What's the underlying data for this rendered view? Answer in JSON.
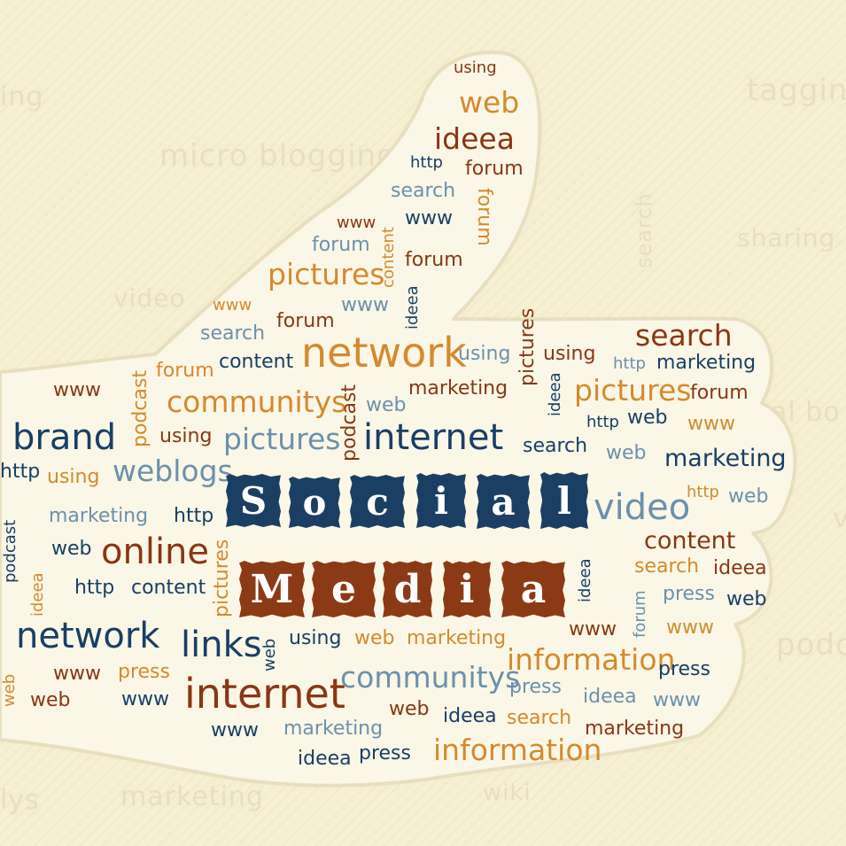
{
  "title_tiles": {
    "social": [
      "S",
      "o",
      "c",
      "i",
      "a",
      "l"
    ],
    "media": [
      "M",
      "e",
      "d",
      "i",
      "a"
    ]
  },
  "background_words": [
    "tagging",
    "micro blogging",
    "sharing",
    "video",
    "search",
    "podcast",
    "marketing",
    "wiki",
    "ing",
    "lys",
    "al bo",
    "podc",
    "v"
  ],
  "words": {
    "t01": "using",
    "t02": "web",
    "t03": "ideea",
    "t04": "http",
    "t05": "forum",
    "t06": "search",
    "t07": "forum",
    "t08": "www",
    "t09": "www",
    "t10": "forum",
    "t11": "content",
    "t12": "forum",
    "t13": "pictures",
    "t14": "www",
    "t15": "www",
    "t16": "ideea",
    "t17": "forum",
    "t18": "search",
    "t19": "network",
    "t20": "using",
    "t21": "pictures",
    "t22": "using",
    "t23": "search",
    "t24": "http",
    "t25": "marketing",
    "t26": "forum",
    "t27": "content",
    "t28": "www",
    "t29": "podcast",
    "t30": "communitys",
    "t31": "podcast",
    "t32": "web",
    "t33": "marketing",
    "t34": "ideea",
    "t35": "pictures",
    "t36": "forum",
    "t37": "brand",
    "t38": "using",
    "t39": "pictures",
    "t40": "internet",
    "t41": "http",
    "t42": "web",
    "t43": "www",
    "t44": "http",
    "t45": "using",
    "t46": "weblogs",
    "t47": "search",
    "t48": "web",
    "t49": "marketing",
    "t50": "podcast",
    "t51": "marketing",
    "t52": "http",
    "t53": "video",
    "t54": "http",
    "t55": "web",
    "t56": "web",
    "t57": "online",
    "t58": "pictures",
    "t59": "content",
    "t60": "ideea",
    "t61": "http",
    "t62": "content",
    "t63": "ideea",
    "t64": "search",
    "t65": "ideea",
    "t66": "press",
    "t67": "web",
    "t68": "network",
    "t69": "links",
    "t70": "web",
    "t71": "using",
    "t72": "web",
    "t73": "marketing",
    "t74": "www",
    "t75": "forum",
    "t76": "www",
    "t77": "information",
    "t78": "web",
    "t79": "www",
    "t80": "press",
    "t81": "internet",
    "t82": "communitys",
    "t83": "press",
    "t84": "press",
    "t85": "web",
    "t86": "www",
    "t87": "ideea",
    "t88": "www",
    "t89": "web",
    "t90": "ideea",
    "t91": "search",
    "t92": "www",
    "t93": "marketing",
    "t94": "marketing",
    "t95": "ideea",
    "t96": "press",
    "t97": "information"
  },
  "colors": {
    "background": "#f6efd2",
    "hand_fill": "#fbf7e6",
    "navy": "#183f66",
    "steel_blue": "#6b91ad",
    "orange": "#d48a2e",
    "rust": "#8a3613"
  }
}
